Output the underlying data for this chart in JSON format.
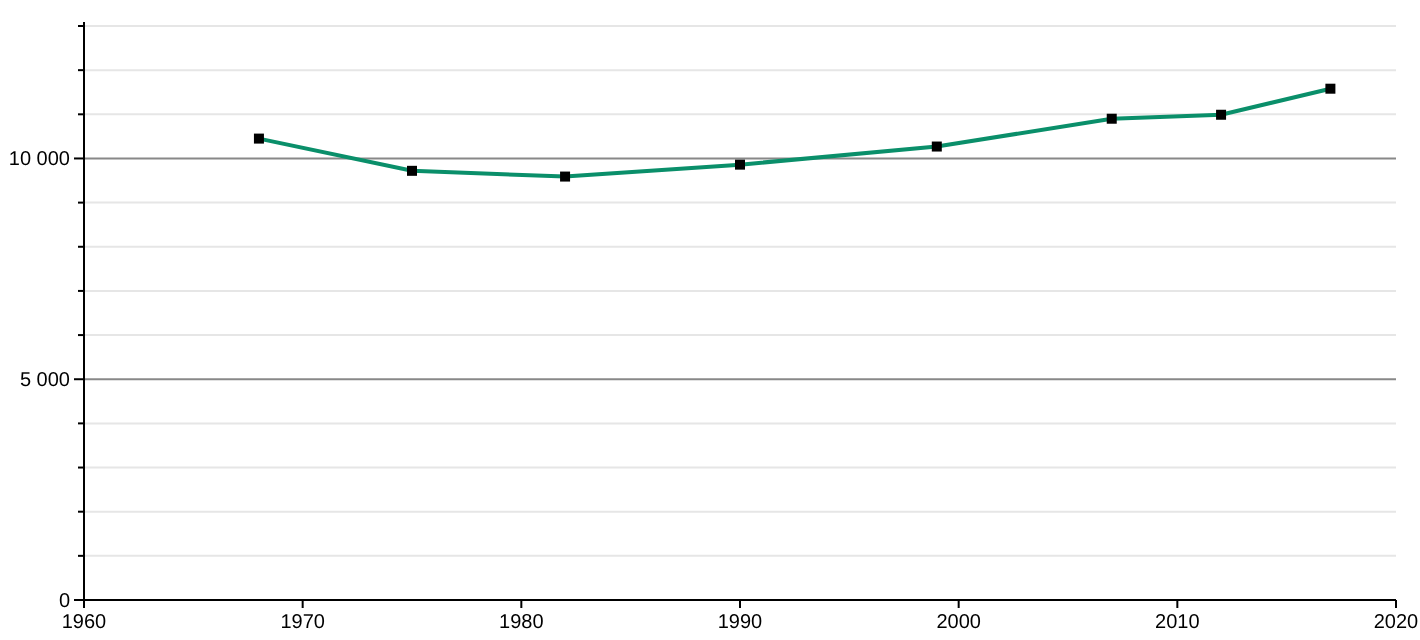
{
  "chart_data": {
    "type": "line",
    "x": [
      1968,
      1975,
      1982,
      1990,
      1999,
      2007,
      2012,
      2017
    ],
    "series": [
      {
        "color": "#0a8f6a",
        "values": [
          10450,
          9720,
          9590,
          9860,
          10270,
          10900,
          10990,
          11580
        ]
      }
    ],
    "xlim": [
      1960,
      2020
    ],
    "xticks": [
      1960,
      1970,
      1980,
      1990,
      2000,
      2010,
      2020
    ],
    "ylim": [
      0,
      13000
    ],
    "yticks": [
      {
        "value": 0,
        "label": "0"
      },
      {
        "value": 1000,
        "label": null
      },
      {
        "value": 2000,
        "label": null
      },
      {
        "value": 3000,
        "label": null
      },
      {
        "value": 4000,
        "label": null
      },
      {
        "value": 5000,
        "label": "5 000"
      },
      {
        "value": 6000,
        "label": null
      },
      {
        "value": 7000,
        "label": null
      },
      {
        "value": 8000,
        "label": null
      },
      {
        "value": 9000,
        "label": null
      },
      {
        "value": 10000,
        "label": "10 000"
      },
      {
        "value": 11000,
        "label": null
      },
      {
        "value": 12000,
        "label": null
      },
      {
        "value": 13000,
        "label": null
      }
    ],
    "grid": "y",
    "marker": "square",
    "line_style": "solid"
  }
}
